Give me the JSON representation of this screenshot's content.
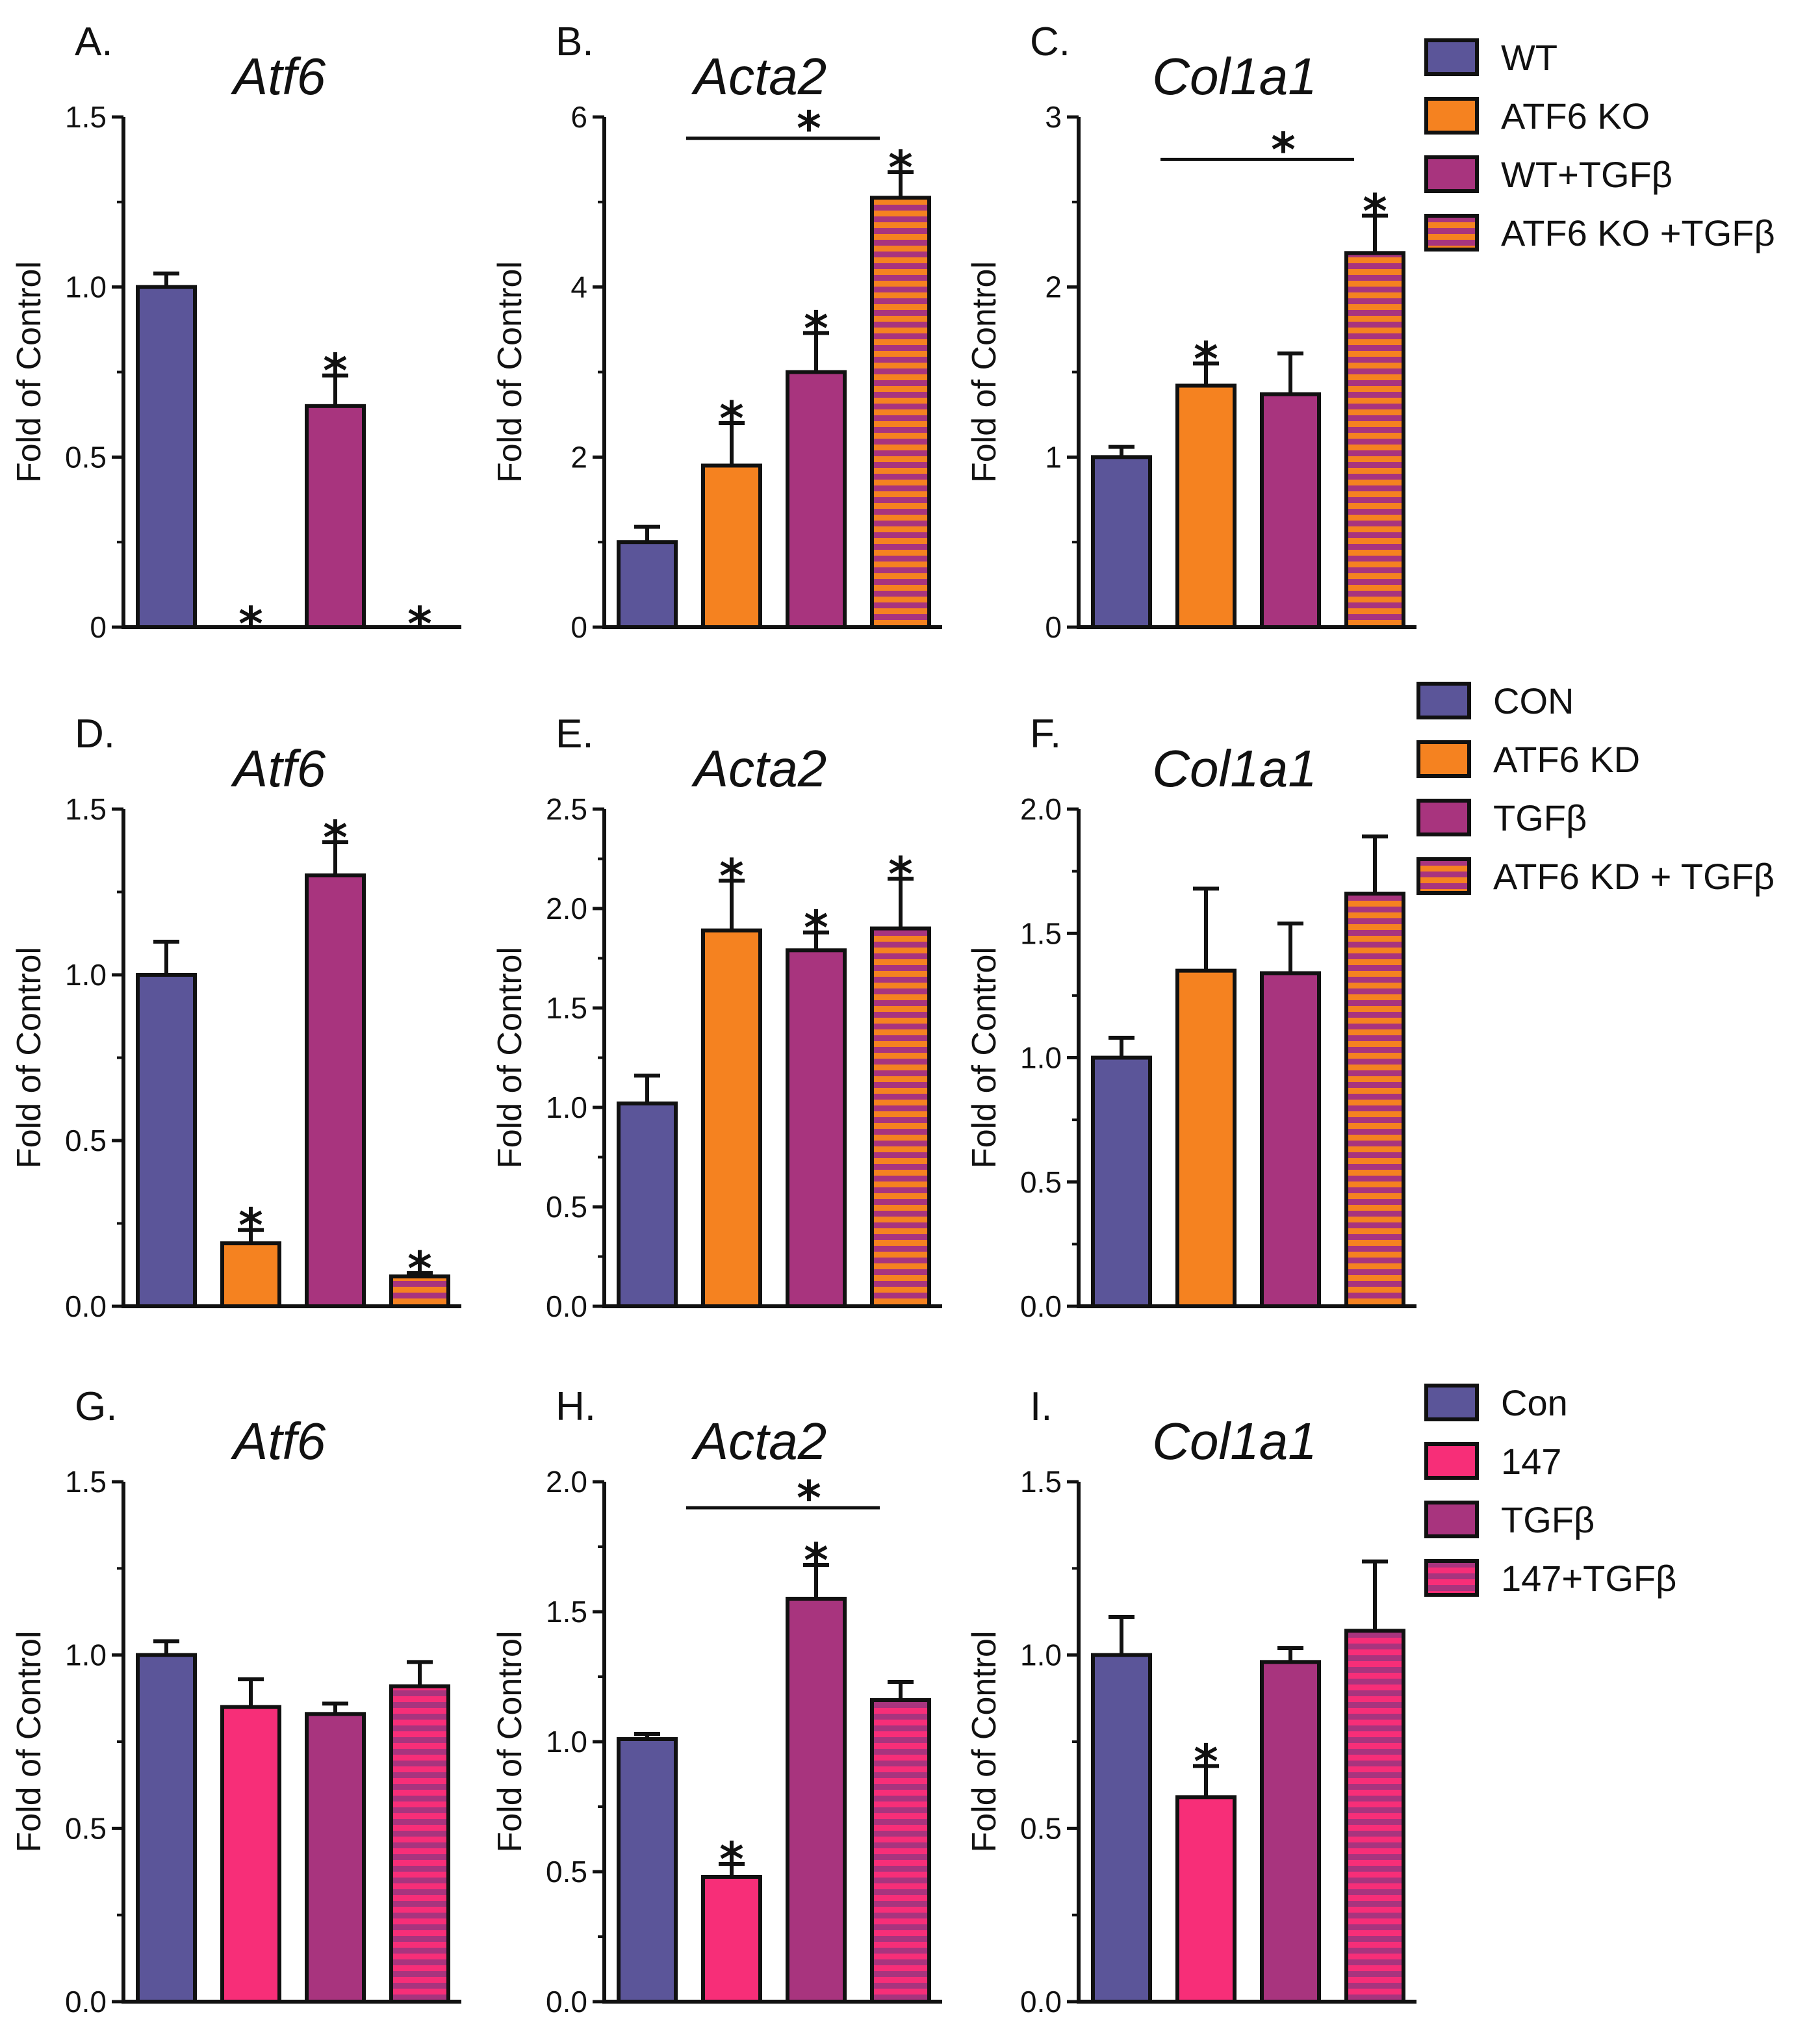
{
  "colors": {
    "wt": "#5b5599",
    "ko": "#f58220",
    "tgf": "#a8347e",
    "koStripeA": "#f58220",
    "koStripeB": "#a8347e",
    "pink": "#f72e78",
    "pinkStripeA": "#f72e78",
    "pinkStripeB": "#a8347e",
    "axis": "#111111"
  },
  "legends": [
    {
      "items": [
        {
          "label": "WT",
          "color": "wt"
        },
        {
          "label": "ATF6 KO",
          "color": "ko"
        },
        {
          "label": "WT+TGFβ",
          "color": "tgf"
        },
        {
          "label": "ATF6 KO +TGFβ",
          "color": "koStripe"
        }
      ]
    },
    {
      "items": [
        {
          "label": "CON",
          "color": "wt"
        },
        {
          "label": "ATF6 KD",
          "color": "ko"
        },
        {
          "label": "TGFβ",
          "color": "tgf"
        },
        {
          "label": "ATF6 KD + TGFβ",
          "color": "koStripe"
        }
      ]
    },
    {
      "items": [
        {
          "label": "Con",
          "color": "wt"
        },
        {
          "label": "147",
          "color": "pink"
        },
        {
          "label": "TGFβ",
          "color": "tgf"
        },
        {
          "label": "147+TGFβ",
          "color": "pinkStripe"
        }
      ]
    }
  ],
  "chart_data": [
    {
      "type": "bar",
      "letter": "A.",
      "title": "Atf6",
      "ylabel": "Fold of Control",
      "ylim": [
        0,
        1.5
      ],
      "ticks": [
        0,
        0.5,
        1.0,
        1.5
      ],
      "tick_labels": [
        "0",
        "0.5",
        "1.0",
        "1.5"
      ],
      "series": [
        {
          "name": "WT",
          "value": 1.0,
          "error": 0.04,
          "star": false,
          "color": "wt"
        },
        {
          "name": "ATF6 KO",
          "value": 0.0,
          "error": 0,
          "star": true,
          "color": "ko"
        },
        {
          "name": "WT+TGFβ",
          "value": 0.65,
          "error": 0.09,
          "star": true,
          "color": "tgf"
        },
        {
          "name": "ATF6 KO +TGFβ",
          "value": 0.0,
          "error": 0,
          "star": true,
          "color": "koStripe"
        }
      ],
      "bracket": null
    },
    {
      "type": "bar",
      "letter": "B.",
      "title": "Acta2",
      "ylabel": "Fold of Control",
      "ylim": [
        0,
        6
      ],
      "ticks": [
        0,
        2,
        4,
        6
      ],
      "tick_labels": [
        "0",
        "2",
        "4",
        "6"
      ],
      "series": [
        {
          "name": "WT",
          "value": 1.0,
          "error": 0.18,
          "star": false,
          "color": "wt"
        },
        {
          "name": "ATF6 KO",
          "value": 1.9,
          "error": 0.5,
          "star": true,
          "color": "ko"
        },
        {
          "name": "WT+TGFβ",
          "value": 3.0,
          "error": 0.46,
          "star": true,
          "color": "tgf"
        },
        {
          "name": "ATF6 KO +TGFβ",
          "value": 5.05,
          "error": 0.3,
          "star": true,
          "color": "koStripe"
        }
      ],
      "bracket": {
        "from": 2,
        "to": 3,
        "value": 5.75,
        "star": true
      }
    },
    {
      "type": "bar",
      "letter": "C.",
      "title": "Col1a1",
      "ylabel": "Fold of Control",
      "ylim": [
        0,
        3
      ],
      "ticks": [
        0,
        1,
        2,
        3
      ],
      "tick_labels": [
        "0",
        "1",
        "2",
        "3"
      ],
      "series": [
        {
          "name": "WT",
          "value": 1.0,
          "error": 0.06,
          "star": false,
          "color": "wt"
        },
        {
          "name": "ATF6 KO",
          "value": 1.42,
          "error": 0.13,
          "star": true,
          "color": "ko"
        },
        {
          "name": "WT+TGFβ",
          "value": 1.37,
          "error": 0.24,
          "star": false,
          "color": "tgf"
        },
        {
          "name": "ATF6 KO +TGFβ",
          "value": 2.2,
          "error": 0.22,
          "star": true,
          "color": "koStripe"
        }
      ],
      "bracket": {
        "from": 2,
        "to": 3,
        "value": 2.75,
        "star": true
      }
    },
    {
      "type": "bar",
      "letter": "D.",
      "title": "Atf6",
      "ylabel": "Fold of Control",
      "ylim": [
        0,
        1.5
      ],
      "ticks": [
        0,
        0.5,
        1.0,
        1.5
      ],
      "tick_labels": [
        "0.0",
        "0.5",
        "1.0",
        "1.5"
      ],
      "series": [
        {
          "name": "CON",
          "value": 1.0,
          "error": 0.1,
          "star": false,
          "color": "wt"
        },
        {
          "name": "ATF6 KD",
          "value": 0.19,
          "error": 0.04,
          "star": true,
          "color": "ko"
        },
        {
          "name": "TGFβ",
          "value": 1.3,
          "error": 0.1,
          "star": true,
          "color": "tgf"
        },
        {
          "name": "ATF6 KD + TGFβ",
          "value": 0.09,
          "error": 0.01,
          "star": true,
          "color": "koStripe"
        }
      ],
      "bracket": null
    },
    {
      "type": "bar",
      "letter": "E.",
      "title": "Acta2",
      "ylabel": "Fold of Control",
      "ylim": [
        0,
        2.5
      ],
      "ticks": [
        0,
        0.5,
        1.0,
        1.5,
        2.0,
        2.5
      ],
      "tick_labels": [
        "0.0",
        "0.5",
        "1.0",
        "1.5",
        "2.0",
        "2.5"
      ],
      "series": [
        {
          "name": "CON",
          "value": 1.02,
          "error": 0.14,
          "star": false,
          "color": "wt"
        },
        {
          "name": "ATF6 KD",
          "value": 1.89,
          "error": 0.25,
          "star": true,
          "color": "ko"
        },
        {
          "name": "TGFβ",
          "value": 1.79,
          "error": 0.09,
          "star": true,
          "color": "tgf"
        },
        {
          "name": "ATF6 KD + TGFβ",
          "value": 1.9,
          "error": 0.25,
          "star": true,
          "color": "koStripe"
        }
      ],
      "bracket": null
    },
    {
      "type": "bar",
      "letter": "F.",
      "title": "Col1a1",
      "ylabel": "Fold of Control",
      "ylim": [
        0,
        2.0
      ],
      "ticks": [
        0,
        0.5,
        1.0,
        1.5,
        2.0
      ],
      "tick_labels": [
        "0.0",
        "0.5",
        "1.0",
        "1.5",
        "2.0"
      ],
      "series": [
        {
          "name": "CON",
          "value": 1.0,
          "error": 0.08,
          "star": false,
          "color": "wt"
        },
        {
          "name": "ATF6 KD",
          "value": 1.35,
          "error": 0.33,
          "star": false,
          "color": "ko"
        },
        {
          "name": "TGFβ",
          "value": 1.34,
          "error": 0.2,
          "star": false,
          "color": "tgf"
        },
        {
          "name": "ATF6 KD + TGFβ",
          "value": 1.66,
          "error": 0.23,
          "star": false,
          "color": "koStripe"
        }
      ],
      "bracket": null
    },
    {
      "type": "bar",
      "letter": "G.",
      "title": "Atf6",
      "ylabel": "Fold of Control",
      "ylim": [
        0,
        1.5
      ],
      "ticks": [
        0,
        0.5,
        1.0,
        1.5
      ],
      "tick_labels": [
        "0.0",
        "0.5",
        "1.0",
        "1.5"
      ],
      "series": [
        {
          "name": "Con",
          "value": 1.0,
          "error": 0.04,
          "star": false,
          "color": "wt"
        },
        {
          "name": "147",
          "value": 0.85,
          "error": 0.08,
          "star": false,
          "color": "pink"
        },
        {
          "name": "TGFβ",
          "value": 0.83,
          "error": 0.03,
          "star": false,
          "color": "tgf"
        },
        {
          "name": "147+TGFβ",
          "value": 0.91,
          "error": 0.07,
          "star": false,
          "color": "pinkStripe"
        }
      ],
      "bracket": null
    },
    {
      "type": "bar",
      "letter": "H.",
      "title": "Acta2",
      "ylabel": "Fold of Control",
      "ylim": [
        0,
        2.0
      ],
      "ticks": [
        0,
        0.5,
        1.0,
        1.5,
        2.0
      ],
      "tick_labels": [
        "0.0",
        "0.5",
        "1.0",
        "1.5",
        "2.0"
      ],
      "series": [
        {
          "name": "Con",
          "value": 1.01,
          "error": 0.02,
          "star": false,
          "color": "wt"
        },
        {
          "name": "147",
          "value": 0.48,
          "error": 0.05,
          "star": true,
          "color": "pink"
        },
        {
          "name": "TGFβ",
          "value": 1.55,
          "error": 0.13,
          "star": true,
          "color": "tgf"
        },
        {
          "name": "147+TGFβ",
          "value": 1.16,
          "error": 0.07,
          "star": false,
          "color": "pinkStripe"
        }
      ],
      "bracket": {
        "from": 2,
        "to": 3,
        "value": 1.9,
        "star": true
      }
    },
    {
      "type": "bar",
      "letter": "I.",
      "title": "Col1a1",
      "ylabel": "Fold of Control",
      "ylim": [
        0,
        1.5
      ],
      "ticks": [
        0,
        0.5,
        1.0,
        1.5
      ],
      "tick_labels": [
        "0.0",
        "0.5",
        "1.0",
        "1.5"
      ],
      "series": [
        {
          "name": "Con",
          "value": 1.0,
          "error": 0.11,
          "star": false,
          "color": "wt"
        },
        {
          "name": "147",
          "value": 0.59,
          "error": 0.09,
          "star": true,
          "color": "pink"
        },
        {
          "name": "TGFβ",
          "value": 0.98,
          "error": 0.04,
          "star": false,
          "color": "tgf"
        },
        {
          "name": "147+TGFβ",
          "value": 1.07,
          "error": 0.2,
          "star": false,
          "color": "pinkStripe"
        }
      ],
      "bracket": null
    }
  ]
}
